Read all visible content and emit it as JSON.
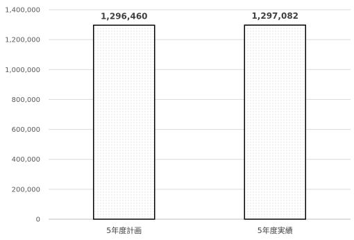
{
  "chart_data": {
    "type": "bar",
    "title": "",
    "xlabel": "",
    "ylabel": "",
    "categories": [
      "5年度計画",
      "5年度実績"
    ],
    "values": [
      1296460,
      1297082
    ],
    "data_labels": [
      "1,296,460",
      "1,297,082"
    ],
    "ylim": [
      0,
      1400000
    ],
    "yticks": [
      0,
      200000,
      400000,
      600000,
      800000,
      1000000,
      1200000,
      1400000
    ],
    "ytick_labels": [
      "0",
      "200,000",
      "400,000",
      "600,000",
      "800,000",
      "1,000,000",
      "1,200,000",
      "1,400,000"
    ],
    "grid": true,
    "legend": "none",
    "bar_fill": "dotted",
    "bar_fill_color": "#ffffff",
    "bar_dot_color": "#bdbdbd",
    "bar_outline_color": "#000000"
  }
}
